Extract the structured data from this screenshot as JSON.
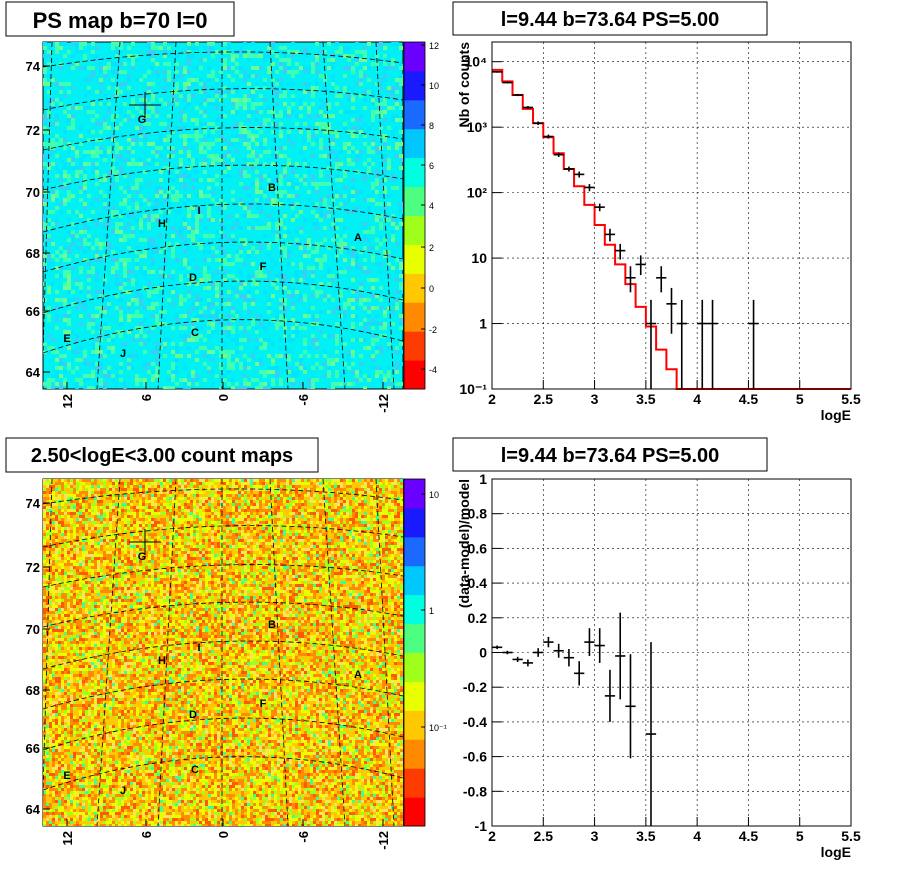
{
  "colors": {
    "model": "#ff0000",
    "data": "#000000",
    "grid": "#000000",
    "colorbar": [
      "#6a00ff",
      "#1a1aff",
      "#1a6aff",
      "#00c8ff",
      "#00ffe0",
      "#4cff80",
      "#a0ff1a",
      "#e8ff00",
      "#ffc800",
      "#ff8a00",
      "#ff3c00",
      "#ff0000"
    ]
  },
  "top_left": {
    "title": "PS map b=70 l=0",
    "colorbar_ticks": [
      "12",
      "10",
      "8",
      "6",
      "4",
      "2",
      "0",
      "-2",
      "-4"
    ],
    "y_ticks": [
      "74",
      "72",
      "70",
      "68",
      "66",
      "64"
    ],
    "x_ticks": [
      "12",
      "6",
      "0",
      "-6",
      "-12"
    ],
    "labels": [
      "G",
      "B",
      "I",
      "H",
      "A",
      "F",
      "D",
      "E",
      "C",
      "J"
    ]
  },
  "bottom_left": {
    "title": "2.50<logE<3.00 count maps",
    "colorbar_ticks": [
      "10",
      "1",
      "10⁻¹"
    ],
    "y_ticks": [
      "74",
      "72",
      "70",
      "68",
      "66",
      "64"
    ],
    "x_ticks": [
      "12",
      "6",
      "0",
      "-6",
      "-12"
    ],
    "labels": [
      "G",
      "B",
      "I",
      "H",
      "A",
      "F",
      "D",
      "E",
      "C",
      "J"
    ]
  },
  "chart_data": [
    {
      "type": "line",
      "title": "l=9.44 b=73.64 PS=5.00",
      "xlabel": "logE",
      "ylabel": "Nb of counts",
      "xlim": [
        2,
        5.5
      ],
      "ylim": [
        0.1,
        20000
      ],
      "yscale": "log",
      "grid": true,
      "x_ticks": [
        "2",
        "2.5",
        "3",
        "3.5",
        "4",
        "4.5",
        "5",
        "5.5"
      ],
      "y_ticks": [
        "10⁻¹",
        "1",
        "10",
        "10²",
        "10³",
        "10⁴"
      ],
      "model_bin_edges": [
        2.0,
        2.1,
        2.2,
        2.3,
        2.4,
        2.5,
        2.6,
        2.7,
        2.8,
        2.9,
        3.0,
        3.1,
        3.2,
        3.3,
        3.4,
        3.5,
        3.6,
        3.7,
        3.8,
        3.9,
        4.0,
        5.5
      ],
      "model_values": [
        7500,
        5000,
        3100,
        1900,
        1150,
        700,
        400,
        230,
        125,
        65,
        32,
        16,
        8,
        4,
        1.8,
        0.9,
        0.4,
        0.2,
        0.1,
        0.1,
        0.1
      ],
      "data_points": [
        {
          "x": 2.05,
          "y": 7000,
          "lo": 6800,
          "hi": 7200
        },
        {
          "x": 2.15,
          "y": 4800,
          "lo": 4650,
          "hi": 4950
        },
        {
          "x": 2.25,
          "y": 3100,
          "lo": 2980,
          "hi": 3220
        },
        {
          "x": 2.35,
          "y": 2000,
          "lo": 1900,
          "hi": 2100
        },
        {
          "x": 2.45,
          "y": 1150,
          "lo": 1080,
          "hi": 1220
        },
        {
          "x": 2.55,
          "y": 720,
          "lo": 670,
          "hi": 770
        },
        {
          "x": 2.65,
          "y": 380,
          "lo": 350,
          "hi": 410
        },
        {
          "x": 2.75,
          "y": 230,
          "lo": 210,
          "hi": 250
        },
        {
          "x": 2.85,
          "y": 190,
          "lo": 170,
          "hi": 210
        },
        {
          "x": 2.95,
          "y": 120,
          "lo": 105,
          "hi": 135
        },
        {
          "x": 3.05,
          "y": 60,
          "lo": 52,
          "hi": 68
        },
        {
          "x": 3.15,
          "y": 23,
          "lo": 18,
          "hi": 28
        },
        {
          "x": 3.25,
          "y": 13,
          "lo": 9.5,
          "hi": 16.5
        },
        {
          "x": 3.35,
          "y": 5,
          "lo": 3,
          "hi": 7.5
        },
        {
          "x": 3.45,
          "y": 8,
          "lo": 5.5,
          "hi": 11
        },
        {
          "x": 3.55,
          "y": 1,
          "lo": 0.1,
          "hi": 2.3
        },
        {
          "x": 3.65,
          "y": 5,
          "lo": 3,
          "hi": 7.5
        },
        {
          "x": 3.75,
          "y": 2,
          "lo": 0.7,
          "hi": 3.5
        },
        {
          "x": 3.85,
          "y": 1,
          "lo": 0.1,
          "hi": 2.3
        },
        {
          "x": 4.05,
          "y": 1,
          "lo": 0.1,
          "hi": 2.3
        },
        {
          "x": 4.15,
          "y": 1,
          "lo": 0.1,
          "hi": 2.3
        },
        {
          "x": 4.55,
          "y": 1,
          "lo": 0.1,
          "hi": 2.3
        }
      ]
    },
    {
      "type": "scatter",
      "title": "l=9.44 b=73.64 PS=5.00",
      "xlabel": "logE",
      "ylabel": "(data-model)/model",
      "xlim": [
        2,
        5.5
      ],
      "ylim": [
        -1,
        1
      ],
      "grid": true,
      "x_ticks": [
        "2",
        "2.5",
        "3",
        "3.5",
        "4",
        "4.5",
        "5",
        "5.5"
      ],
      "y_ticks": [
        "1",
        "0.8",
        "0.6",
        "0.4",
        "0.2",
        "0",
        "-0.2",
        "-0.4",
        "-0.6",
        "-0.8",
        "-1"
      ],
      "data_points": [
        {
          "x": 2.05,
          "y": 0.03,
          "err": 0.01
        },
        {
          "x": 2.15,
          "y": 0.0,
          "err": 0.01
        },
        {
          "x": 2.25,
          "y": -0.04,
          "err": 0.015
        },
        {
          "x": 2.35,
          "y": -0.06,
          "err": 0.02
        },
        {
          "x": 2.45,
          "y": 0.0,
          "err": 0.025
        },
        {
          "x": 2.55,
          "y": 0.06,
          "err": 0.03
        },
        {
          "x": 2.65,
          "y": 0.01,
          "err": 0.04
        },
        {
          "x": 2.75,
          "y": -0.03,
          "err": 0.05
        },
        {
          "x": 2.85,
          "y": -0.12,
          "err": 0.07
        },
        {
          "x": 2.95,
          "y": 0.06,
          "err": 0.08
        },
        {
          "x": 3.05,
          "y": 0.04,
          "err": 0.1
        },
        {
          "x": 3.15,
          "y": -0.25,
          "err": 0.15
        },
        {
          "x": 3.25,
          "y": -0.02,
          "err": 0.25
        },
        {
          "x": 3.35,
          "y": -0.31,
          "err": 0.3
        },
        {
          "x": 3.55,
          "y": -0.47,
          "err": 0.53
        }
      ]
    }
  ]
}
